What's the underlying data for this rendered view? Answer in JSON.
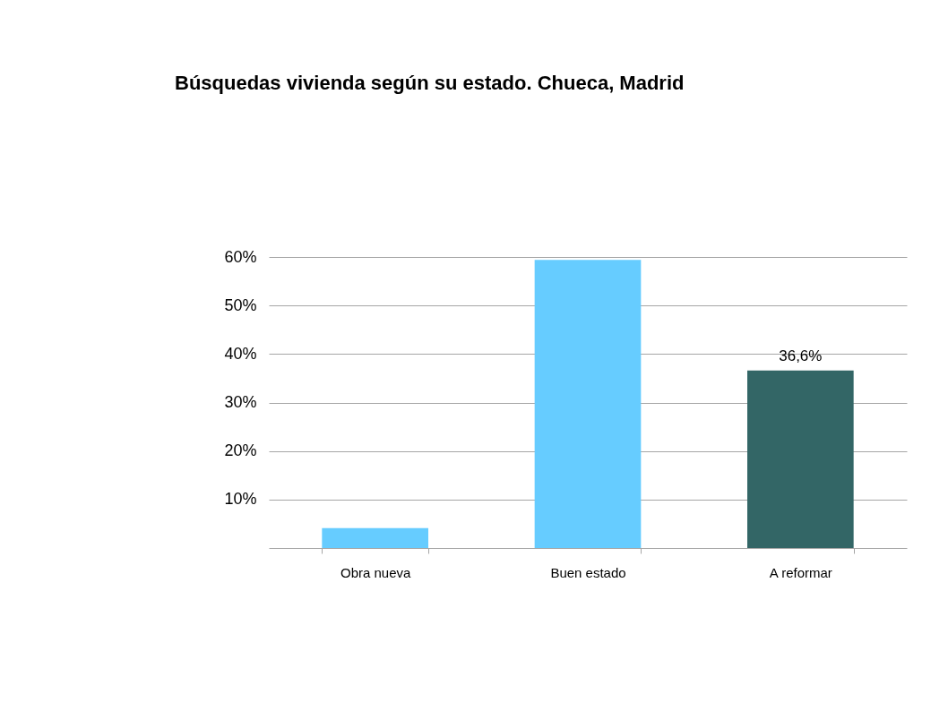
{
  "chart_data": {
    "type": "bar",
    "title": "Búsquedas vivienda según su estado. Chueca, Madrid",
    "categories": [
      "Obra nueva",
      "Buen estado",
      "A reformar"
    ],
    "values": [
      4.1,
      59.4,
      36.6
    ],
    "colors": [
      "#66ccff",
      "#66ccff",
      "#336666"
    ],
    "value_labels": [
      null,
      null,
      "36,6%"
    ],
    "ylim": [
      0,
      60
    ],
    "yticks": [
      {
        "value": 10,
        "label": "10%"
      },
      {
        "value": 20,
        "label": "20%"
      },
      {
        "value": 30,
        "label": "30%"
      },
      {
        "value": 40,
        "label": "40%"
      },
      {
        "value": 50,
        "label": "50%"
      },
      {
        "value": 60,
        "label": "60%"
      }
    ],
    "grid": "y"
  }
}
